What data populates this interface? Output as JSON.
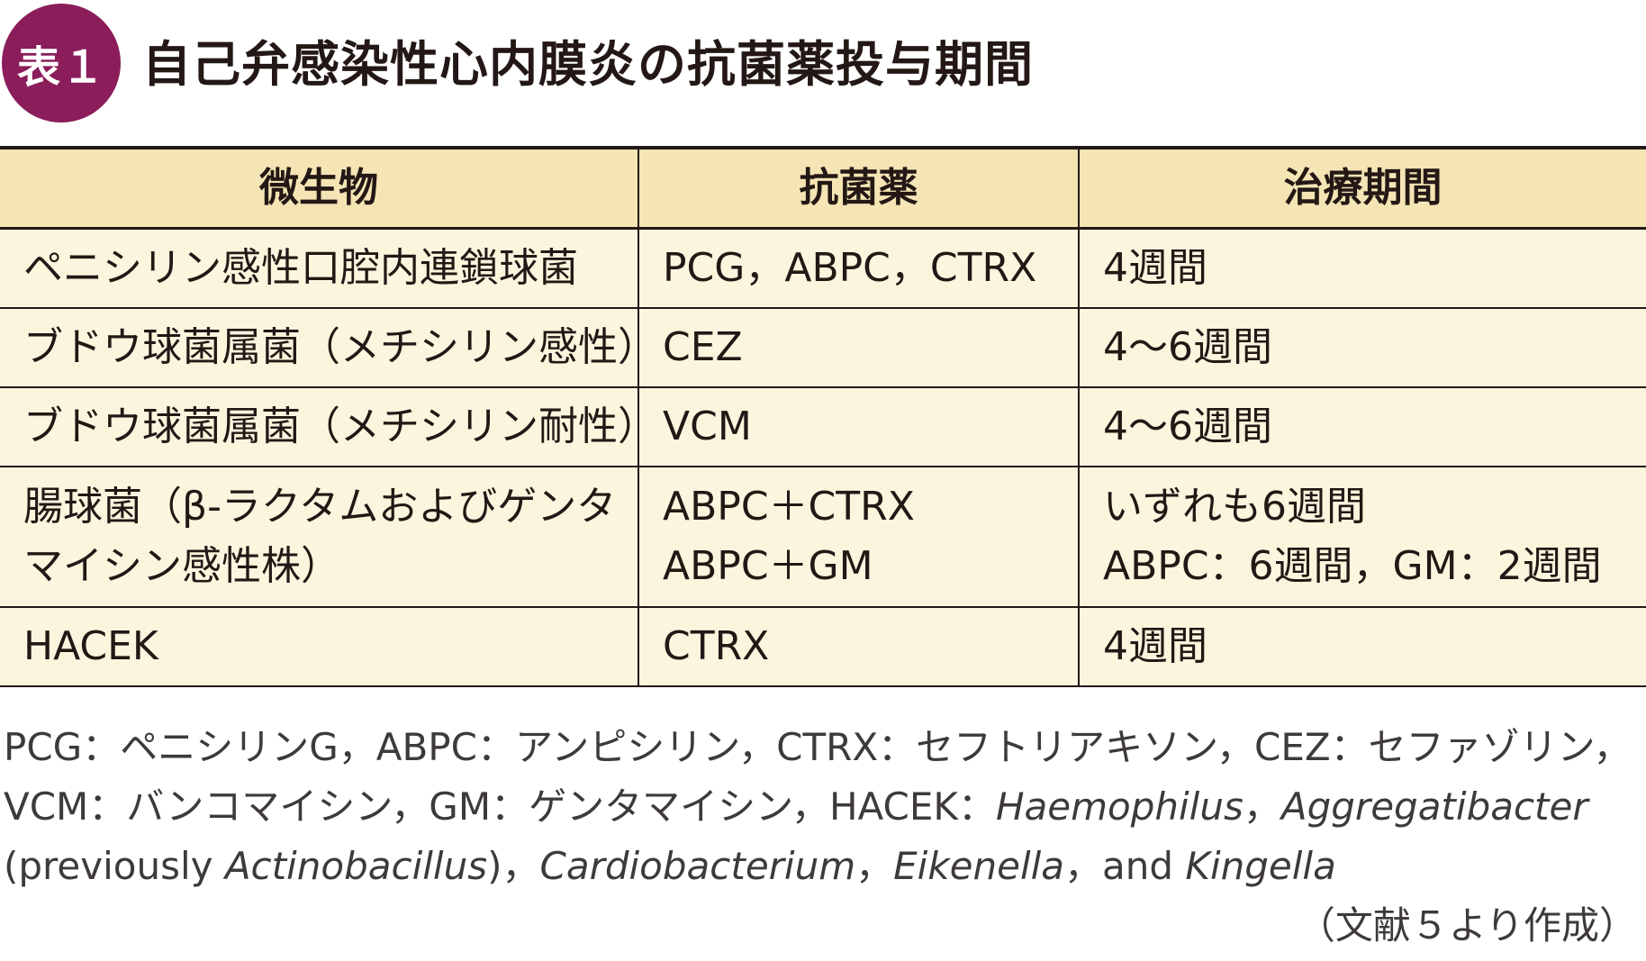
{
  "header": {
    "badge": "表１",
    "title": "自己弁感染性心内膜炎の抗菌薬投与期間"
  },
  "table": {
    "headers": [
      "微生物",
      "抗菌薬",
      "治療期間"
    ],
    "rows": [
      {
        "organism": [
          "ペニシリン感性口腔内連鎖球菌"
        ],
        "antibiotic": [
          "PCG，ABPC，CTRX"
        ],
        "duration": [
          "4週間"
        ]
      },
      {
        "organism": [
          "ブドウ球菌属菌（メチシリン感性）"
        ],
        "antibiotic": [
          "CEZ"
        ],
        "duration": [
          "4～6週間"
        ]
      },
      {
        "organism": [
          "ブドウ球菌属菌（メチシリン耐性）"
        ],
        "antibiotic": [
          "VCM"
        ],
        "duration": [
          "4～6週間"
        ]
      },
      {
        "organism": [
          "腸球菌（β-ラクタムおよびゲンタ",
          "マイシン感性株）"
        ],
        "antibiotic": [
          "ABPC＋CTRX",
          "ABPC＋GM"
        ],
        "duration": [
          "いずれも6週間",
          "ABPC：6週間，GM：2週間"
        ]
      },
      {
        "organism": [
          "HACEK"
        ],
        "antibiotic": [
          "CTRX"
        ],
        "duration": [
          "4週間"
        ]
      }
    ]
  },
  "notes": {
    "line1": "PCG：ペニシリンG，ABPC：アンピシリン，CTRX：セフトリアキソン，CEZ：セファゾリン，",
    "line2_a": "VCM：バンコマイシン，GM：ゲンタマイシン，HACEK：",
    "line2_b": "Haemophilus",
    "line2_c": "，",
    "line2_d": "Aggregatibacter",
    "line3_a": "(previously ",
    "line3_b": "Actinobacillus",
    "line3_c": ")，",
    "line3_d": "Cardiobacterium",
    "line3_e": "，",
    "line3_f": "Eikenella",
    "line3_g": "，and ",
    "line3_h": "Kingella"
  },
  "source": "（文献５より作成）"
}
